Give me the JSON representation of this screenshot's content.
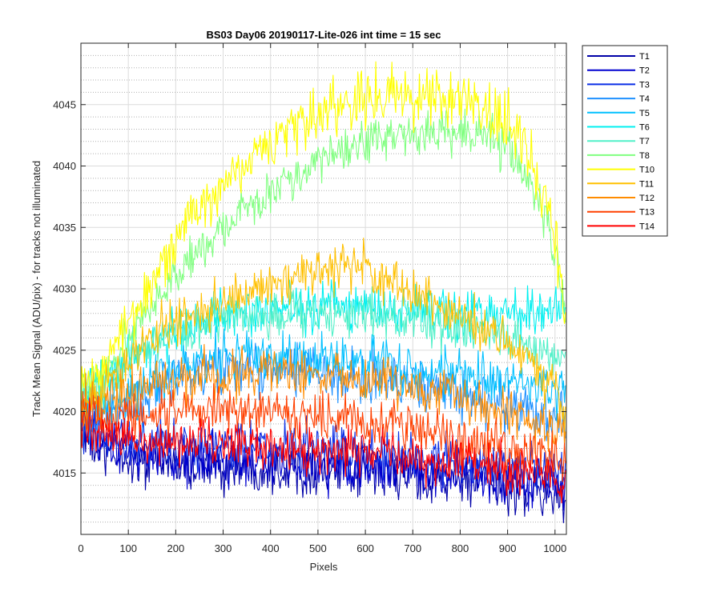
{
  "chart_data": {
    "type": "line",
    "title": "BS03 Day06 20190117-Lite-026 int time = 15 sec",
    "xlabel": "Pixels",
    "ylabel": "Track Mean Signal (ADU/pix) - for tracks not illuminated",
    "xlim": [
      0,
      1024
    ],
    "ylim": [
      4010,
      4050
    ],
    "x_ticks": [
      0,
      100,
      200,
      300,
      400,
      500,
      600,
      700,
      800,
      900,
      1000
    ],
    "y_ticks": [
      4015,
      4020,
      4025,
      4030,
      4035,
      4040,
      4045
    ],
    "y_minor_step": 1,
    "grid": true,
    "legend_position": "outside-right-top",
    "x_points": [
      0,
      50,
      100,
      150,
      200,
      250,
      300,
      350,
      400,
      450,
      500,
      550,
      600,
      650,
      700,
      750,
      800,
      850,
      900,
      950,
      1000,
      1023
    ],
    "series": [
      {
        "name": "T1",
        "color": "#0000a8",
        "noise": 1.4,
        "values": [
          4018,
          4016.5,
          4016,
          4015.8,
          4015.7,
          4015.6,
          4015.5,
          4015.5,
          4015.5,
          4015.4,
          4015.3,
          4015.2,
          4015,
          4015,
          4014.8,
          4014.5,
          4014.3,
          4014,
          4013.8,
          4013.5,
          4013.3,
          4013
        ]
      },
      {
        "name": "T2",
        "color": "#0000d0",
        "noise": 1.4,
        "values": [
          4018.5,
          4017,
          4016.5,
          4016.3,
          4016.2,
          4016,
          4015.9,
          4015.8,
          4015.8,
          4015.7,
          4015.6,
          4015.5,
          4015.4,
          4015.3,
          4015.2,
          4015,
          4014.8,
          4014.6,
          4014.4,
          4014.2,
          4014,
          4013.8
        ]
      },
      {
        "name": "T3",
        "color": "#0a2ee6",
        "noise": 1.3,
        "values": [
          4019,
          4018,
          4017.8,
          4017.6,
          4017.5,
          4017.4,
          4017.3,
          4017.2,
          4017.1,
          4017,
          4016.9,
          4016.8,
          4016.7,
          4016.5,
          4016.3,
          4016.1,
          4015.9,
          4015.7,
          4015.5,
          4015.3,
          4015,
          4014.8
        ]
      },
      {
        "name": "T4",
        "color": "#1e90ff",
        "noise": 1.5,
        "values": [
          4020,
          4019.5,
          4020.5,
          4021.5,
          4022.5,
          4023,
          4023.3,
          4023.5,
          4023.5,
          4023.4,
          4023.2,
          4023,
          4022.8,
          4022.5,
          4022.2,
          4021.8,
          4021.4,
          4021,
          4020.5,
          4020,
          4019.5,
          4019
        ]
      },
      {
        "name": "T5",
        "color": "#00c0ff",
        "noise": 1.5,
        "values": [
          4020.5,
          4020.5,
          4021.5,
          4022.5,
          4023.3,
          4024,
          4024.3,
          4024.5,
          4024.5,
          4024.4,
          4024.3,
          4024.2,
          4024,
          4023.7,
          4023.4,
          4023.1,
          4022.8,
          4022.5,
          4022.2,
          4022,
          4021.8,
          4021.5
        ]
      },
      {
        "name": "T6",
        "color": "#00f0f0",
        "noise": 1.3,
        "values": [
          4021.5,
          4022.5,
          4024.3,
          4025.5,
          4026.5,
          4027.3,
          4027.8,
          4028.1,
          4028.3,
          4028.4,
          4028.5,
          4028.5,
          4028.5,
          4028.4,
          4028.3,
          4028.2,
          4028.1,
          4028,
          4028,
          4028,
          4028.3,
          4028.5
        ]
      },
      {
        "name": "T7",
        "color": "#50f0c8",
        "noise": 1.2,
        "values": [
          4021,
          4022,
          4024,
          4025.5,
          4026.5,
          4027,
          4027.5,
          4027.8,
          4028,
          4028.1,
          4028.1,
          4028,
          4027.9,
          4027.7,
          4027.4,
          4027,
          4026.6,
          4026.2,
          4025.7,
          4025.2,
          4024.4,
          4023.8
        ]
      },
      {
        "name": "T8",
        "color": "#80ff80",
        "noise": 1.2,
        "values": [
          4021.5,
          4023,
          4026,
          4028.5,
          4031,
          4033,
          4034.8,
          4036.5,
          4038,
          4039.3,
          4040.3,
          4041.2,
          4041.8,
          4042.3,
          4042.6,
          4042.8,
          4042.8,
          4042.5,
          4041.5,
          4038.5,
          4033,
          4028
        ]
      },
      {
        "name": "T10",
        "color": "#ffff00",
        "noise": 1.6,
        "values": [
          4022,
          4024,
          4027,
          4030.5,
          4034,
          4036.5,
          4038.5,
          4040.5,
          4042,
          4043.2,
          4044.2,
          4045,
          4045.4,
          4045.6,
          4045.6,
          4045.5,
          4045.4,
          4045,
          4044,
          4040.5,
          4034,
          4026.5
        ]
      },
      {
        "name": "T11",
        "color": "#ffc000",
        "noise": 1.3,
        "values": [
          4021,
          4022,
          4024,
          4026,
          4027.5,
          4028.3,
          4029,
          4029.6,
          4030.3,
          4031,
          4031.6,
          4032,
          4031.6,
          4030.8,
          4029.8,
          4028.8,
          4027.8,
          4026.8,
          4025.6,
          4024,
          4021.5,
          4019.5
        ]
      },
      {
        "name": "T12",
        "color": "#ff8c00",
        "noise": 1.4,
        "values": [
          4020.5,
          4020.5,
          4021.3,
          4022,
          4022.5,
          4022.8,
          4023,
          4023.2,
          4023.4,
          4023.4,
          4023.3,
          4023.1,
          4022.8,
          4022.4,
          4022,
          4021.5,
          4021,
          4020.4,
          4019.8,
          4019.2,
          4018.6,
          4018
        ]
      },
      {
        "name": "T13",
        "color": "#ff4000",
        "noise": 1.3,
        "values": [
          4020,
          4019.5,
          4019.8,
          4020,
          4020.1,
          4020.2,
          4020.2,
          4020.2,
          4020.1,
          4020,
          4019.8,
          4019.6,
          4019.3,
          4019,
          4018.7,
          4018.3,
          4017.9,
          4017.5,
          4017.1,
          4016.7,
          4016.3,
          4015.9
        ]
      },
      {
        "name": "T14",
        "color": "#ff0000",
        "noise": 1.3,
        "values": [
          4019,
          4018,
          4017.8,
          4017.7,
          4017.6,
          4017.5,
          4017.4,
          4017.4,
          4017.3,
          4017.2,
          4017.1,
          4017,
          4016.8,
          4016.6,
          4016.4,
          4016.1,
          4015.8,
          4015.5,
          4015.2,
          4015,
          4014.7,
          4014.5
        ]
      }
    ]
  }
}
